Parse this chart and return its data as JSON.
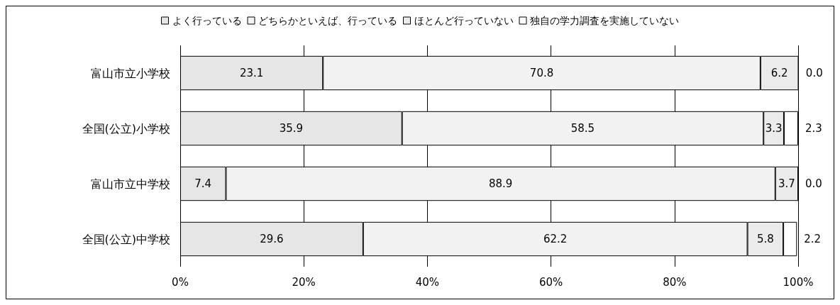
{
  "chart_data": {
    "type": "bar",
    "orientation": "horizontal",
    "stacked": true,
    "grid": "x",
    "legend": "top",
    "categories": [
      "富山市立小学校",
      "全国(公立)小学校",
      "富山市立中学校",
      "全国(公立)中学校"
    ],
    "series": [
      {
        "name": "よく行っている",
        "color": "#e6e6e6",
        "values": [
          23.1,
          35.9,
          7.4,
          29.6
        ],
        "value_labels": [
          "23.1",
          "35.9",
          "7.4",
          "29.6"
        ]
      },
      {
        "name": "どちらかといえば、行っている",
        "color": "#f2f2f2",
        "values": [
          70.8,
          58.5,
          88.9,
          62.2
        ],
        "value_labels": [
          "70.8",
          "58.5",
          "88.9",
          "62.2"
        ]
      },
      {
        "name": "ほとんど行っていない",
        "color": "#ebebeb",
        "values": [
          6.2,
          3.3,
          3.7,
          5.8
        ],
        "value_labels": [
          "6.2",
          "3.3",
          "3.7",
          "5.8"
        ]
      },
      {
        "name": "独自の学力調査を実施していない",
        "color": "#ffffff",
        "values": [
          0.0,
          2.3,
          0.0,
          2.2
        ],
        "value_labels": [
          "0.0",
          "2.3",
          "0.0",
          "2.2"
        ]
      }
    ],
    "xlim": [
      0,
      100
    ],
    "xticks": [
      {
        "value": 0,
        "label": "0%"
      },
      {
        "value": 20,
        "label": "20%"
      },
      {
        "value": 40,
        "label": "40%"
      },
      {
        "value": 60,
        "label": "60%"
      },
      {
        "value": 80,
        "label": "80%"
      },
      {
        "value": 100,
        "label": "100%"
      }
    ]
  }
}
